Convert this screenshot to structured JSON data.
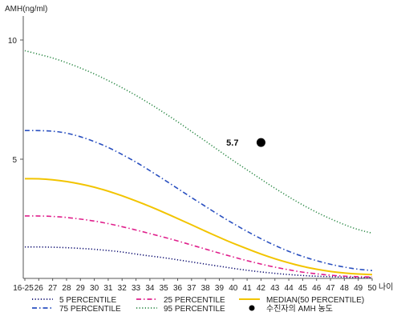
{
  "chart_data": {
    "type": "line",
    "ylabel": "AMH(ng/ml)",
    "xlabel": "나이",
    "x_categories": [
      "16-25",
      "26",
      "27",
      "28",
      "29",
      "30",
      "31",
      "32",
      "33",
      "34",
      "35",
      "36",
      "37",
      "38",
      "39",
      "40",
      "41",
      "42",
      "43",
      "44",
      "45",
      "46",
      "47",
      "48",
      "49",
      "50"
    ],
    "y_ticks": [
      "5",
      "10"
    ],
    "ylim": [
      0,
      11
    ],
    "grid": false,
    "series": [
      {
        "name": "5 PERCENTILE",
        "color": "#0a0a6e",
        "dash": "dot",
        "values": [
          1.32,
          1.32,
          1.31,
          1.29,
          1.26,
          1.22,
          1.17,
          1.11,
          1.02,
          0.94,
          0.87,
          0.78,
          0.69,
          0.6,
          0.51,
          0.42,
          0.34,
          0.27,
          0.21,
          0.16,
          0.12,
          0.09,
          0.07,
          0.05,
          0.04,
          0.04
        ]
      },
      {
        "name": "25 PERCENTILE",
        "color": "#e0208c",
        "dash": "dashdot",
        "values": [
          2.62,
          2.62,
          2.6,
          2.56,
          2.49,
          2.41,
          2.3,
          2.17,
          2.03,
          1.88,
          1.73,
          1.57,
          1.4,
          1.23,
          1.06,
          0.9,
          0.74,
          0.6,
          0.47,
          0.36,
          0.26,
          0.19,
          0.13,
          0.09,
          0.07,
          0.06
        ]
      },
      {
        "name": "MEDIAN(50 PERCENTILE)",
        "color": "#f2c400",
        "dash": "solid",
        "values": [
          4.18,
          4.18,
          4.14,
          4.07,
          3.96,
          3.83,
          3.66,
          3.47,
          3.25,
          3.02,
          2.77,
          2.51,
          2.25,
          1.98,
          1.72,
          1.47,
          1.24,
          1.02,
          0.82,
          0.65,
          0.5,
          0.38,
          0.29,
          0.22,
          0.18,
          0.16
        ]
      },
      {
        "name": "75 PERCENTILE",
        "color": "#2a50c0",
        "dash": "dashdot",
        "values": [
          6.2,
          6.2,
          6.18,
          6.1,
          5.95,
          5.74,
          5.5,
          5.2,
          4.88,
          4.52,
          4.15,
          3.77,
          3.39,
          3.02,
          2.65,
          2.3,
          1.97,
          1.66,
          1.38,
          1.13,
          0.92,
          0.74,
          0.59,
          0.47,
          0.38,
          0.33
        ]
      },
      {
        "name": "95 PERCENTILE",
        "color": "#2e8a48",
        "dash": "dot",
        "values": [
          9.55,
          9.4,
          9.25,
          9.05,
          8.83,
          8.58,
          8.3,
          8.0,
          7.68,
          7.33,
          6.96,
          6.57,
          6.16,
          5.76,
          5.35,
          4.94,
          4.55,
          4.16,
          3.78,
          3.42,
          3.08,
          2.77,
          2.5,
          2.25,
          2.04,
          1.9
        ]
      }
    ],
    "patient_point": {
      "name": "수진자의 AMH 농도",
      "x": "42",
      "y": 5.7,
      "label": "5.7",
      "color": "#000000"
    },
    "legend_placement": "bottom"
  }
}
